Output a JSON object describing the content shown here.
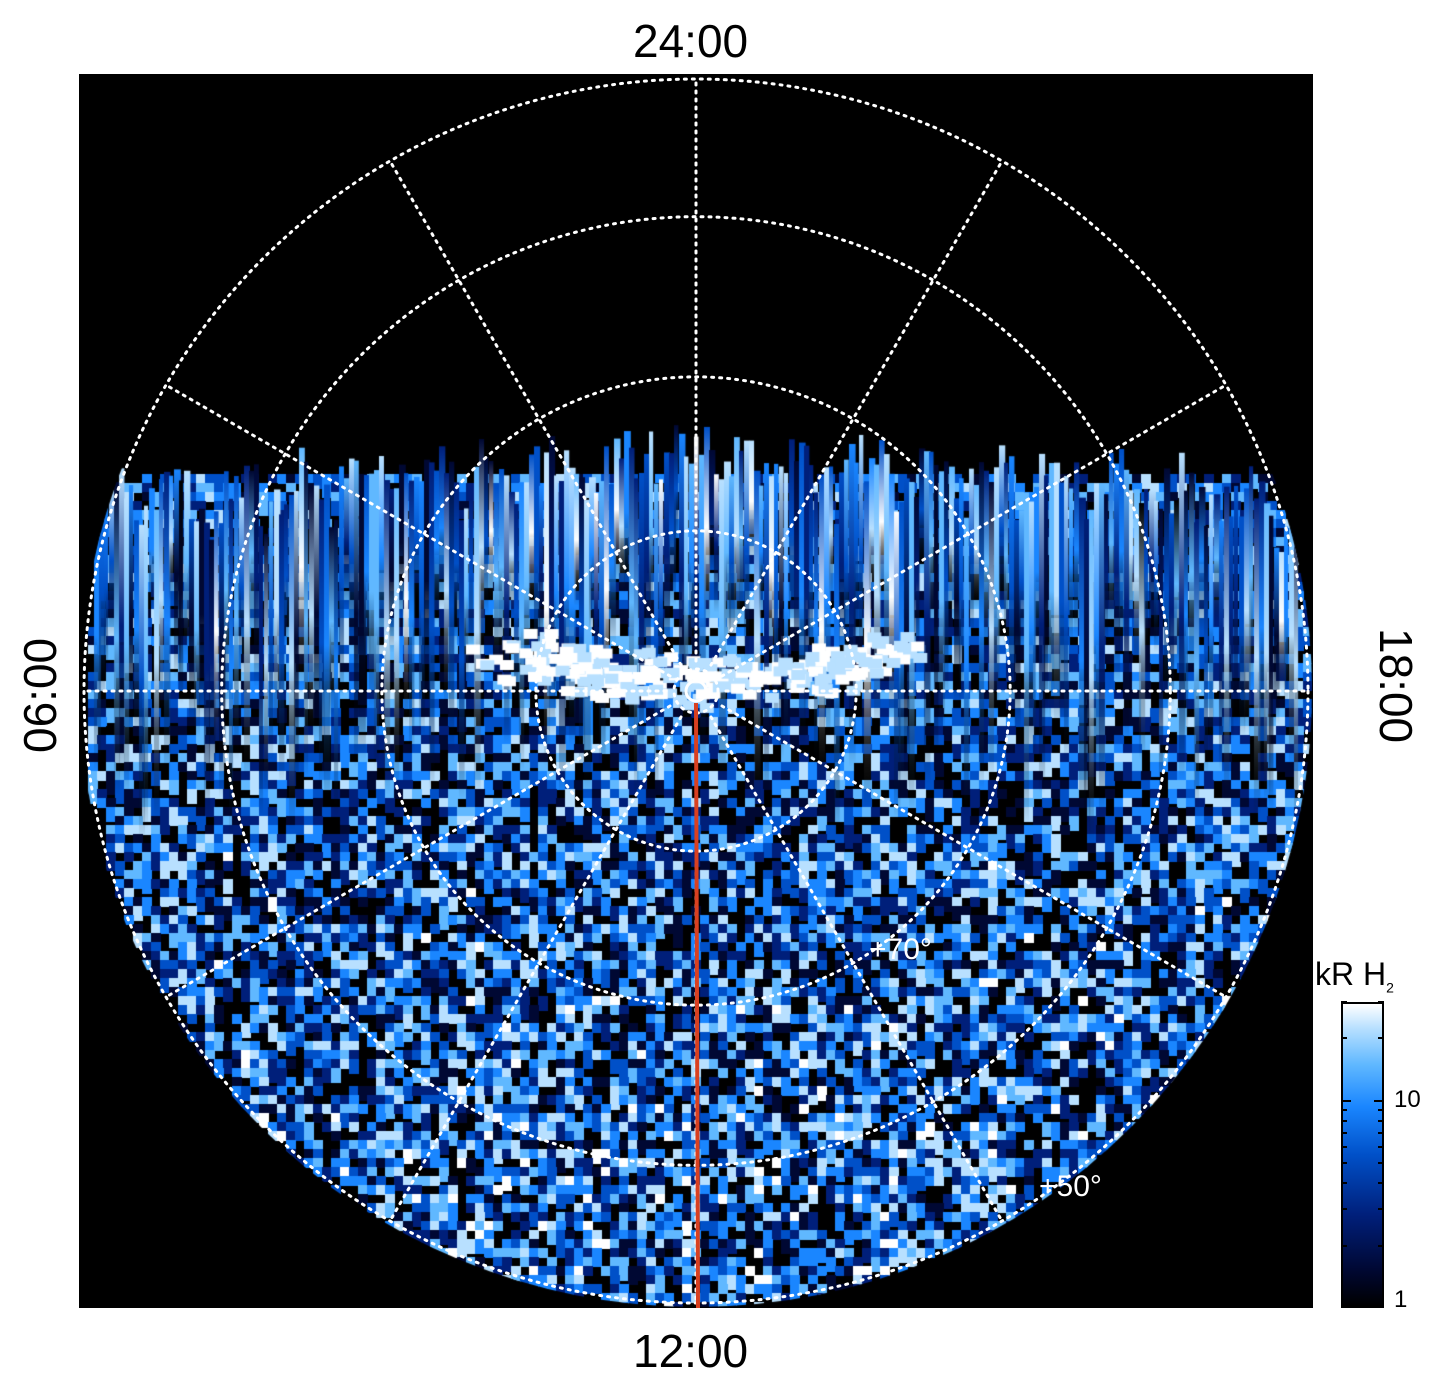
{
  "chart_data": {
    "type": "heatmap",
    "projection": "polar (north-pole view, local time vs latitude)",
    "local_time_labels": {
      "top": "24:00",
      "bottom": "12:00",
      "left": "06:00",
      "right": "18:00"
    },
    "latitude_labels": [
      "+70°",
      "+50°"
    ],
    "colorbar": {
      "title": "kR H",
      "title_subscript": "2",
      "scale": "log",
      "range": [
        1,
        30
      ],
      "tick_labels": [
        "1",
        "10"
      ],
      "colors": [
        "#000000",
        "#000833",
        "#001f7a",
        "#0050c8",
        "#1a86ff",
        "#60b8ff",
        "#b8e0ff",
        "#ffffff"
      ]
    },
    "meridian_line": {
      "local_time": "12:00",
      "color": "#d94020"
    },
    "grid": true,
    "background": "#000000",
    "grid_color": "#ffffff"
  }
}
